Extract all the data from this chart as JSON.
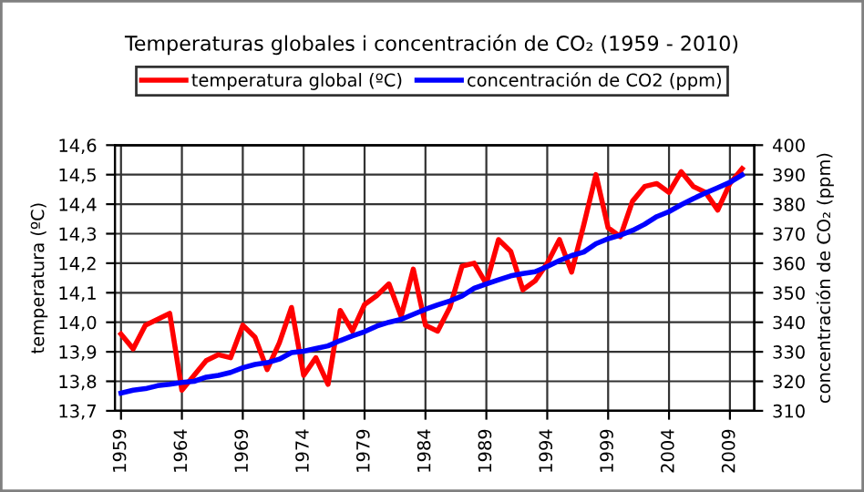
{
  "chart_data": {
    "type": "line",
    "title": "Temperaturas globales i concentración de CO₂ (1959 - 2010)",
    "ylabel": "temperatura (ºC)",
    "y2label": "concentración de CO₂ (ppm)",
    "x": [
      1959,
      1960,
      1961,
      1962,
      1963,
      1964,
      1965,
      1966,
      1967,
      1968,
      1969,
      1970,
      1971,
      1972,
      1973,
      1974,
      1975,
      1976,
      1977,
      1978,
      1979,
      1980,
      1981,
      1982,
      1983,
      1984,
      1985,
      1986,
      1987,
      1988,
      1989,
      1990,
      1991,
      1992,
      1993,
      1994,
      1995,
      1996,
      1997,
      1998,
      1999,
      2000,
      2001,
      2002,
      2003,
      2004,
      2005,
      2006,
      2007,
      2008,
      2009,
      2010
    ],
    "series": [
      {
        "name": "temperatura global (ºC)",
        "color": "#ff0000",
        "values": [
          13.96,
          13.91,
          13.99,
          14.01,
          14.03,
          13.77,
          13.82,
          13.87,
          13.89,
          13.88,
          13.99,
          13.95,
          13.84,
          13.93,
          14.05,
          13.82,
          13.88,
          13.79,
          14.04,
          13.97,
          14.06,
          14.09,
          14.13,
          14.02,
          14.18,
          13.99,
          13.97,
          14.05,
          14.19,
          14.2,
          14.13,
          14.28,
          14.24,
          14.11,
          14.14,
          14.2,
          14.28,
          14.17,
          14.33,
          14.5,
          14.32,
          14.29,
          14.41,
          14.46,
          14.47,
          14.44,
          14.51,
          14.46,
          14.44,
          14.38,
          14.47,
          14.52
        ]
      },
      {
        "name": "concentración de CO2 (ppm)",
        "color": "#0000ff",
        "axis": "y2",
        "values": [
          316,
          317,
          317.5,
          318.5,
          319,
          319.6,
          320,
          321.4,
          322,
          323,
          324.6,
          325.7,
          326.3,
          327.5,
          329.7,
          330.2,
          331.1,
          332,
          333.8,
          335.4,
          336.8,
          338.7,
          340,
          341,
          342.7,
          344.4,
          345.9,
          347.2,
          348.9,
          351.5,
          353,
          354.4,
          355.7,
          356.5,
          357.1,
          358.9,
          360.9,
          362.6,
          363.8,
          366.6,
          368.3,
          369.5,
          371.1,
          373.2,
          375.8,
          377.5,
          379.8,
          381.9,
          383.8,
          385.6,
          387.4,
          389.9
        ]
      }
    ],
    "xlim": [
      1958.5,
      2011
    ],
    "xticks": [
      1959,
      1964,
      1969,
      1974,
      1979,
      1984,
      1989,
      1994,
      1999,
      2004,
      2009
    ],
    "ylim": [
      13.7,
      14.6
    ],
    "yticks": [
      {
        "value": 13.7,
        "label": "13,7"
      },
      {
        "value": 13.8,
        "label": "13,8"
      },
      {
        "value": 13.9,
        "label": "13,9"
      },
      {
        "value": 14.0,
        "label": "14,0"
      },
      {
        "value": 14.1,
        "label": "14,1"
      },
      {
        "value": 14.2,
        "label": "14,2"
      },
      {
        "value": 14.3,
        "label": "14,3"
      },
      {
        "value": 14.4,
        "label": "14,4"
      },
      {
        "value": 14.5,
        "label": "14,5"
      },
      {
        "value": 14.6,
        "label": "14,6"
      }
    ],
    "y2lim": [
      310,
      400
    ],
    "y2ticks": [
      310,
      320,
      330,
      340,
      350,
      360,
      370,
      380,
      390,
      400
    ],
    "grid": true,
    "legend": "top",
    "marker": "none",
    "line_style": "solid"
  }
}
